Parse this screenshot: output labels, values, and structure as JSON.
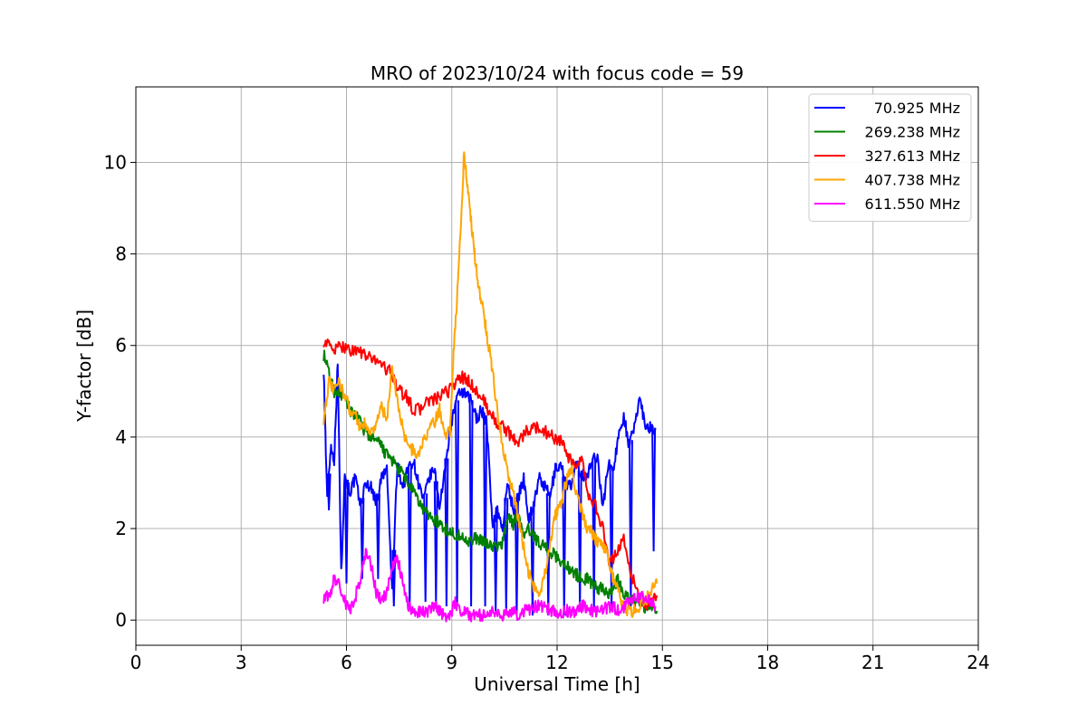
{
  "chart_data": {
    "type": "line",
    "title": "MRO of 2023/10/24 with focus code = 59",
    "xlabel": "Universal Time [h]",
    "ylabel": "Y-factor [dB]",
    "xlim": [
      0,
      24
    ],
    "ylim": [
      -0.55,
      11.65
    ],
    "xticks": [
      0,
      3,
      6,
      9,
      12,
      15,
      18,
      21,
      24
    ],
    "yticks": [
      0,
      2,
      4,
      6,
      8,
      10
    ],
    "grid": true,
    "legend_position": "top-right",
    "series": [
      {
        "name": "70.925 MHz",
        "color": "#0000ff",
        "x": [
          5.35,
          5.45,
          5.55,
          5.65,
          5.75,
          5.85,
          5.95,
          6.1,
          6.25,
          6.4,
          6.55,
          6.7,
          6.85,
          7.0,
          7.15,
          7.3,
          7.45,
          7.6,
          7.75,
          7.9,
          8.05,
          8.2,
          8.35,
          8.5,
          8.65,
          8.8,
          8.95,
          9.1,
          9.25,
          9.4,
          9.55,
          9.7,
          9.85,
          10.0,
          10.15,
          10.3,
          10.45,
          10.6,
          10.75,
          10.9,
          11.05,
          11.2,
          11.35,
          11.5,
          11.65,
          11.8,
          11.95,
          12.1,
          12.25,
          12.4,
          12.55,
          12.7,
          12.85,
          13.0,
          13.15,
          13.3,
          13.45,
          13.6,
          13.75,
          13.9,
          14.05,
          14.2,
          14.35,
          14.5,
          14.65,
          14.8
        ],
        "y": [
          5.5,
          2.6,
          3.8,
          3.5,
          5.6,
          1.0,
          3.2,
          2.8,
          3.1,
          2.5,
          3.0,
          2.9,
          2.6,
          3.1,
          3.3,
          0.6,
          3.4,
          2.9,
          3.3,
          3.5,
          3.0,
          2.6,
          3.1,
          3.3,
          2.5,
          3.2,
          4.2,
          4.7,
          5.0,
          4.9,
          4.8,
          4.4,
          4.6,
          4.3,
          2.1,
          2.4,
          2.0,
          3.0,
          2.4,
          2.7,
          3.1,
          2.2,
          2.6,
          3.1,
          2.9,
          2.7,
          3.3,
          3.4,
          3.0,
          2.9,
          3.4,
          3.2,
          3.1,
          3.5,
          3.6,
          2.4,
          3.4,
          3.3,
          4.0,
          4.5,
          3.8,
          4.2,
          4.9,
          4.3,
          4.2,
          4.2
        ],
        "dips": [
          {
            "x": 5.5,
            "y": 2.4
          },
          {
            "x": 6.0,
            "y": 0.8
          },
          {
            "x": 6.45,
            "y": 0.9
          },
          {
            "x": 6.9,
            "y": 0.9
          },
          {
            "x": 7.35,
            "y": 0.3
          },
          {
            "x": 7.8,
            "y": 0.3
          },
          {
            "x": 8.25,
            "y": 0.4
          },
          {
            "x": 8.55,
            "y": 0.4
          },
          {
            "x": 8.85,
            "y": 0.3
          },
          {
            "x": 9.15,
            "y": 0.3
          },
          {
            "x": 9.55,
            "y": 0.3
          },
          {
            "x": 9.95,
            "y": 0.3
          },
          {
            "x": 10.25,
            "y": 0.2
          },
          {
            "x": 10.55,
            "y": 0.2
          },
          {
            "x": 10.85,
            "y": 0.1
          },
          {
            "x": 11.3,
            "y": 0.1
          },
          {
            "x": 11.75,
            "y": 0.1
          },
          {
            "x": 12.2,
            "y": 0.1
          },
          {
            "x": 12.65,
            "y": 0.2
          },
          {
            "x": 13.05,
            "y": 0.2
          },
          {
            "x": 13.55,
            "y": 0.2
          },
          {
            "x": 14.1,
            "y": 0.3
          },
          {
            "x": 14.75,
            "y": 1.5
          }
        ]
      },
      {
        "name": "269.238 MHz",
        "color": "#008000",
        "x": [
          5.35,
          5.5,
          5.65,
          5.8,
          5.95,
          6.1,
          6.25,
          6.4,
          6.55,
          6.7,
          6.85,
          7.0,
          7.15,
          7.3,
          7.45,
          7.6,
          7.75,
          7.9,
          8.05,
          8.2,
          8.35,
          8.5,
          8.65,
          8.8,
          8.95,
          9.1,
          9.25,
          9.4,
          9.55,
          9.7,
          9.85,
          10.0,
          10.15,
          10.3,
          10.45,
          10.6,
          10.75,
          10.9,
          11.05,
          11.2,
          11.35,
          11.5,
          11.65,
          11.8,
          11.95,
          12.1,
          12.25,
          12.4,
          12.55,
          12.7,
          12.85,
          13.0,
          13.15,
          13.3,
          13.45,
          13.6,
          13.75,
          13.9,
          14.05,
          14.2,
          14.35,
          14.5,
          14.65,
          14.85
        ],
        "y": [
          5.8,
          5.4,
          5.0,
          5.0,
          4.8,
          4.6,
          4.5,
          4.3,
          4.1,
          4.0,
          3.9,
          3.8,
          3.6,
          3.5,
          3.3,
          3.2,
          3.0,
          2.8,
          2.6,
          2.4,
          2.3,
          2.2,
          2.1,
          2.0,
          1.9,
          1.9,
          1.8,
          1.8,
          1.7,
          1.8,
          1.7,
          1.7,
          1.6,
          1.6,
          1.7,
          2.3,
          2.1,
          2.3,
          1.8,
          2.0,
          1.8,
          1.7,
          1.6,
          1.5,
          1.4,
          1.3,
          1.2,
          1.1,
          1.0,
          0.9,
          0.9,
          0.8,
          0.7,
          0.7,
          0.6,
          0.7,
          0.9,
          0.6,
          0.5,
          0.4,
          0.4,
          0.3,
          0.3,
          0.2
        ]
      },
      {
        "name": "327.613 MHz",
        "color": "#ff0000",
        "x": [
          5.35,
          5.5,
          5.7,
          5.9,
          6.1,
          6.3,
          6.5,
          6.7,
          6.9,
          7.1,
          7.3,
          7.5,
          7.7,
          7.9,
          8.1,
          8.3,
          8.5,
          8.7,
          8.9,
          9.1,
          9.3,
          9.5,
          9.7,
          9.9,
          10.1,
          10.3,
          10.5,
          10.7,
          10.9,
          11.1,
          11.3,
          11.5,
          11.7,
          11.9,
          12.1,
          12.3,
          12.5,
          12.7,
          12.9,
          13.1,
          13.3,
          13.5,
          13.7,
          13.9,
          14.1,
          14.3,
          14.5,
          14.7,
          14.85
        ],
        "y": [
          6.1,
          6.0,
          5.9,
          6.0,
          5.9,
          5.9,
          5.8,
          5.7,
          5.7,
          5.5,
          5.4,
          5.0,
          4.9,
          4.6,
          4.6,
          4.8,
          4.8,
          4.9,
          5.0,
          5.2,
          5.3,
          5.2,
          5.0,
          4.8,
          4.5,
          4.3,
          4.2,
          4.0,
          3.9,
          4.1,
          4.2,
          4.2,
          4.1,
          4.0,
          3.9,
          3.6,
          3.3,
          3.5,
          2.7,
          2.5,
          2.0,
          1.2,
          1.5,
          1.8,
          1.0,
          0.6,
          0.3,
          0.4,
          0.5
        ]
      },
      {
        "name": "407.738 MHz",
        "color": "#ffa500",
        "x": [
          5.35,
          5.5,
          5.65,
          5.8,
          5.95,
          6.1,
          6.25,
          6.4,
          6.55,
          6.7,
          6.85,
          7.0,
          7.15,
          7.3,
          7.45,
          7.6,
          7.75,
          7.9,
          8.05,
          8.2,
          8.35,
          8.5,
          8.65,
          8.8,
          8.95,
          9.05,
          9.15,
          9.25,
          9.35,
          9.45,
          9.55,
          9.65,
          9.75,
          9.85,
          9.95,
          10.05,
          10.15,
          10.3,
          10.45,
          10.6,
          10.75,
          10.9,
          11.05,
          11.2,
          11.35,
          11.5,
          11.65,
          11.8,
          11.95,
          12.1,
          12.25,
          12.4,
          12.55,
          12.7,
          12.85,
          13.0,
          13.15,
          13.3,
          13.45,
          13.6,
          13.75,
          13.9,
          14.05,
          14.2,
          14.35,
          14.5,
          14.65,
          14.85
        ],
        "y": [
          4.4,
          5.2,
          5.0,
          5.2,
          4.9,
          4.6,
          4.5,
          4.2,
          4.3,
          4.1,
          4.3,
          4.7,
          4.3,
          5.6,
          4.8,
          4.2,
          3.8,
          3.7,
          3.6,
          3.9,
          4.2,
          4.3,
          4.6,
          4.1,
          4.1,
          5.9,
          7.0,
          8.5,
          10.2,
          9.5,
          8.7,
          8.0,
          7.3,
          7.0,
          6.5,
          6.0,
          5.5,
          4.6,
          3.8,
          3.2,
          2.8,
          2.2,
          1.6,
          1.0,
          0.7,
          0.6,
          1.0,
          1.6,
          2.3,
          2.5,
          3.0,
          3.3,
          2.8,
          2.4,
          2.0,
          1.9,
          1.7,
          1.6,
          1.4,
          0.9,
          0.6,
          0.3,
          0.2,
          0.2,
          0.3,
          0.4,
          0.6,
          0.8
        ]
      },
      {
        "name": "611.550 MHz",
        "color": "#ff00ff",
        "x": [
          5.35,
          5.5,
          5.65,
          5.8,
          5.95,
          6.1,
          6.25,
          6.4,
          6.55,
          6.7,
          6.85,
          7.0,
          7.15,
          7.3,
          7.45,
          7.6,
          7.75,
          7.9,
          8.05,
          8.2,
          8.35,
          8.5,
          8.65,
          8.8,
          8.95,
          9.1,
          9.25,
          9.4,
          9.55,
          9.7,
          9.85,
          10.0,
          10.15,
          10.3,
          10.45,
          10.6,
          10.75,
          10.9,
          11.05,
          11.2,
          11.35,
          11.5,
          11.65,
          11.8,
          11.95,
          12.1,
          12.25,
          12.4,
          12.55,
          12.7,
          12.85,
          13.0,
          13.15,
          13.3,
          13.45,
          13.6,
          13.75,
          13.9,
          14.05,
          14.2,
          14.35,
          14.5,
          14.65,
          14.8
        ],
        "y": [
          0.5,
          0.5,
          0.9,
          0.8,
          0.4,
          0.2,
          0.5,
          0.9,
          1.5,
          1.2,
          0.6,
          0.4,
          0.6,
          1.1,
          1.4,
          0.8,
          0.3,
          0.2,
          0.2,
          0.2,
          0.2,
          0.3,
          0.2,
          0.1,
          0.1,
          0.4,
          0.2,
          0.2,
          0.1,
          0.1,
          0.1,
          0.1,
          0.2,
          0.1,
          0.1,
          0.2,
          0.2,
          0.1,
          0.2,
          0.2,
          0.3,
          0.3,
          0.3,
          0.2,
          0.2,
          0.1,
          0.2,
          0.2,
          0.2,
          0.3,
          0.3,
          0.2,
          0.2,
          0.2,
          0.3,
          0.3,
          0.2,
          0.3,
          0.4,
          0.5,
          0.5,
          0.5,
          0.4,
          0.3
        ]
      }
    ]
  }
}
